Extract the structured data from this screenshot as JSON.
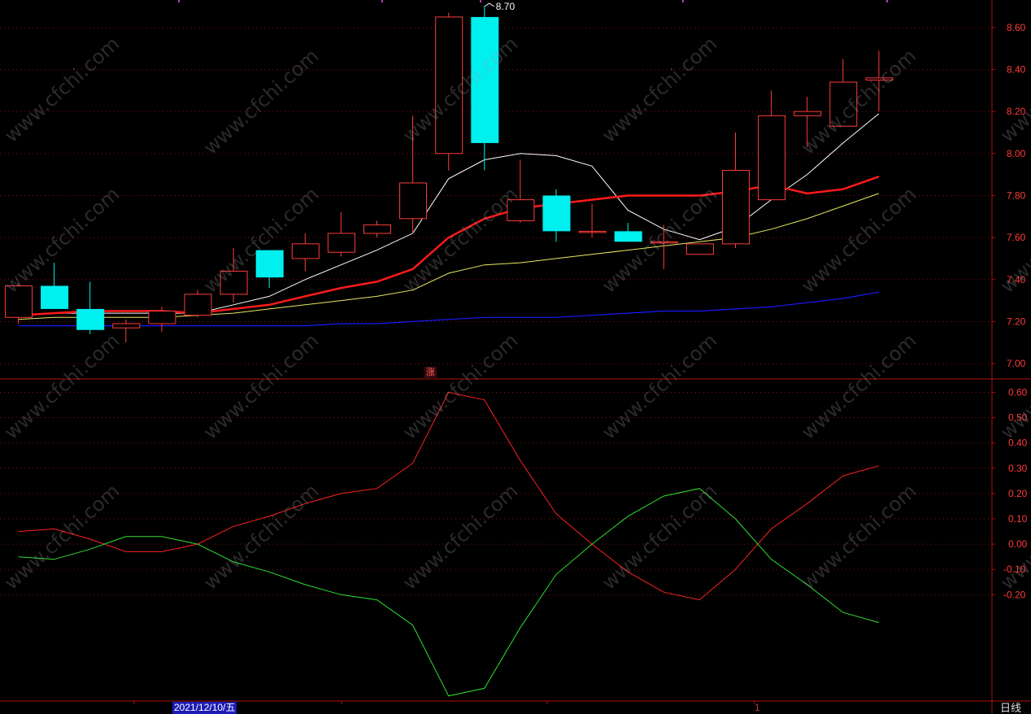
{
  "chart_data": [
    {
      "type": "candlestick",
      "panel": "price",
      "ylim": [
        6.95,
        8.7
      ],
      "yticks": [
        "8.60",
        "8.40",
        "8.20",
        "8.00",
        "7.80",
        "7.60",
        "7.40",
        "7.20",
        "7.00"
      ],
      "ytick_values": [
        8.6,
        8.4,
        8.2,
        8.0,
        7.8,
        7.6,
        7.4,
        7.2,
        7.0
      ],
      "high_label": "8.70",
      "candles": [
        {
          "o": 7.22,
          "h": 7.38,
          "l": 7.19,
          "c": 7.37
        },
        {
          "o": 7.37,
          "h": 7.48,
          "l": 7.26,
          "c": 7.26
        },
        {
          "o": 7.26,
          "h": 7.39,
          "l": 7.14,
          "c": 7.16
        },
        {
          "o": 7.17,
          "h": 7.21,
          "l": 7.1,
          "c": 7.19
        },
        {
          "o": 7.19,
          "h": 7.27,
          "l": 7.15,
          "c": 7.25
        },
        {
          "o": 7.23,
          "h": 7.35,
          "l": 7.22,
          "c": 7.33
        },
        {
          "o": 7.33,
          "h": 7.55,
          "l": 7.29,
          "c": 7.44
        },
        {
          "o": 7.54,
          "h": 7.54,
          "l": 7.36,
          "c": 7.41
        },
        {
          "o": 7.5,
          "h": 7.62,
          "l": 7.44,
          "c": 7.57
        },
        {
          "o": 7.53,
          "h": 7.72,
          "l": 7.51,
          "c": 7.62
        },
        {
          "o": 7.62,
          "h": 7.68,
          "l": 7.6,
          "c": 7.66
        },
        {
          "o": 7.69,
          "h": 8.18,
          "l": 7.62,
          "c": 7.86
        },
        {
          "o": 8.0,
          "h": 8.67,
          "l": 7.92,
          "c": 8.65
        },
        {
          "o": 8.65,
          "h": 8.7,
          "l": 7.92,
          "c": 8.05
        },
        {
          "o": 7.68,
          "h": 7.97,
          "l": 7.67,
          "c": 7.78
        },
        {
          "o": 7.8,
          "h": 7.83,
          "l": 7.58,
          "c": 7.63
        },
        {
          "o": 7.63,
          "h": 7.76,
          "l": 7.6,
          "c": 7.63
        },
        {
          "o": 7.63,
          "h": 7.67,
          "l": 7.58,
          "c": 7.58
        },
        {
          "o": 7.58,
          "h": 7.66,
          "l": 7.45,
          "c": 7.58
        },
        {
          "o": 7.52,
          "h": 7.57,
          "l": 7.52,
          "c": 7.57
        },
        {
          "o": 7.57,
          "h": 8.1,
          "l": 7.55,
          "c": 7.92
        },
        {
          "o": 7.78,
          "h": 8.3,
          "l": 7.78,
          "c": 8.18
        },
        {
          "o": 8.18,
          "h": 8.27,
          "l": 8.03,
          "c": 8.2
        },
        {
          "o": 8.13,
          "h": 8.45,
          "l": 8.13,
          "c": 8.34
        },
        {
          "o": 8.35,
          "h": 8.49,
          "l": 8.2,
          "c": 8.36
        }
      ],
      "moving_averages": [
        {
          "color": "#ffffff",
          "width": 1,
          "start": 0,
          "values": [
            7.23,
            7.24,
            7.24,
            7.24,
            7.24,
            7.24,
            7.28,
            7.32,
            7.4,
            7.47,
            7.54,
            7.62,
            7.88,
            7.97,
            8.0,
            7.99,
            7.94,
            7.73,
            7.64,
            7.59,
            7.65,
            7.78,
            7.9,
            8.05,
            8.19
          ]
        },
        {
          "color": "#ff1a1a",
          "width": 2.5,
          "start": 0,
          "values": [
            7.23,
            7.24,
            7.25,
            7.25,
            7.25,
            7.24,
            7.26,
            7.28,
            7.32,
            7.36,
            7.39,
            7.45,
            7.6,
            7.69,
            7.74,
            7.76,
            7.78,
            7.8,
            7.8,
            7.8,
            7.82,
            7.85,
            7.81,
            7.83,
            7.89
          ]
        },
        {
          "color": "#e8e860",
          "width": 1,
          "start": 0,
          "values": [
            7.21,
            7.22,
            7.22,
            7.22,
            7.22,
            7.23,
            7.24,
            7.26,
            7.28,
            7.3,
            7.32,
            7.35,
            7.43,
            7.47,
            7.48,
            7.5,
            7.52,
            7.54,
            7.56,
            7.58,
            7.6,
            7.64,
            7.69,
            7.75,
            7.81
          ]
        },
        {
          "color": "#1a1aff",
          "width": 1.2,
          "start": 0,
          "values": [
            7.18,
            7.18,
            7.18,
            7.18,
            7.18,
            7.18,
            7.18,
            7.18,
            7.18,
            7.19,
            7.19,
            7.2,
            7.21,
            7.22,
            7.22,
            7.22,
            7.23,
            7.24,
            7.25,
            7.25,
            7.26,
            7.27,
            7.29,
            7.31,
            7.34
          ]
        }
      ]
    },
    {
      "type": "line",
      "panel": "indicator",
      "ylim": [
        -0.62,
        0.64
      ],
      "yticks": [
        "0.60",
        "0.50",
        "0.40",
        "0.30",
        "0.20",
        "0.10",
        "0.00",
        "-0.10",
        "-0.20"
      ],
      "ytick_values": [
        0.6,
        0.5,
        0.4,
        0.3,
        0.2,
        0.1,
        0.0,
        -0.1,
        -0.2
      ],
      "series": [
        {
          "color": "#ff2020",
          "values": [
            0.05,
            0.06,
            0.02,
            -0.03,
            -0.03,
            0.0,
            0.07,
            0.11,
            0.16,
            0.2,
            0.22,
            0.32,
            0.6,
            0.57,
            0.33,
            0.12,
            0.0,
            -0.11,
            -0.19,
            -0.22,
            -0.1,
            0.06,
            0.16,
            0.27,
            0.31
          ]
        },
        {
          "color": "#30e030",
          "values": [
            -0.05,
            -0.06,
            -0.02,
            0.03,
            0.03,
            0.0,
            -0.07,
            -0.11,
            -0.16,
            -0.2,
            -0.22,
            -0.32,
            -0.6,
            -0.57,
            -0.33,
            -0.12,
            0.0,
            0.11,
            0.19,
            0.22,
            0.1,
            -0.06,
            -0.16,
            -0.27,
            -0.31
          ]
        }
      ]
    }
  ],
  "labels": {
    "zhang": "涨",
    "date": "2021/12/10/五",
    "bottom_mark": "1",
    "period": "日线"
  },
  "watermark": "www.cfchi.com",
  "colors": {
    "axis": "#b01010",
    "grid": "#8a1010",
    "up": "#ff3b3b",
    "down": "#00f0f0",
    "ytick_text": "#ff3b3b"
  }
}
